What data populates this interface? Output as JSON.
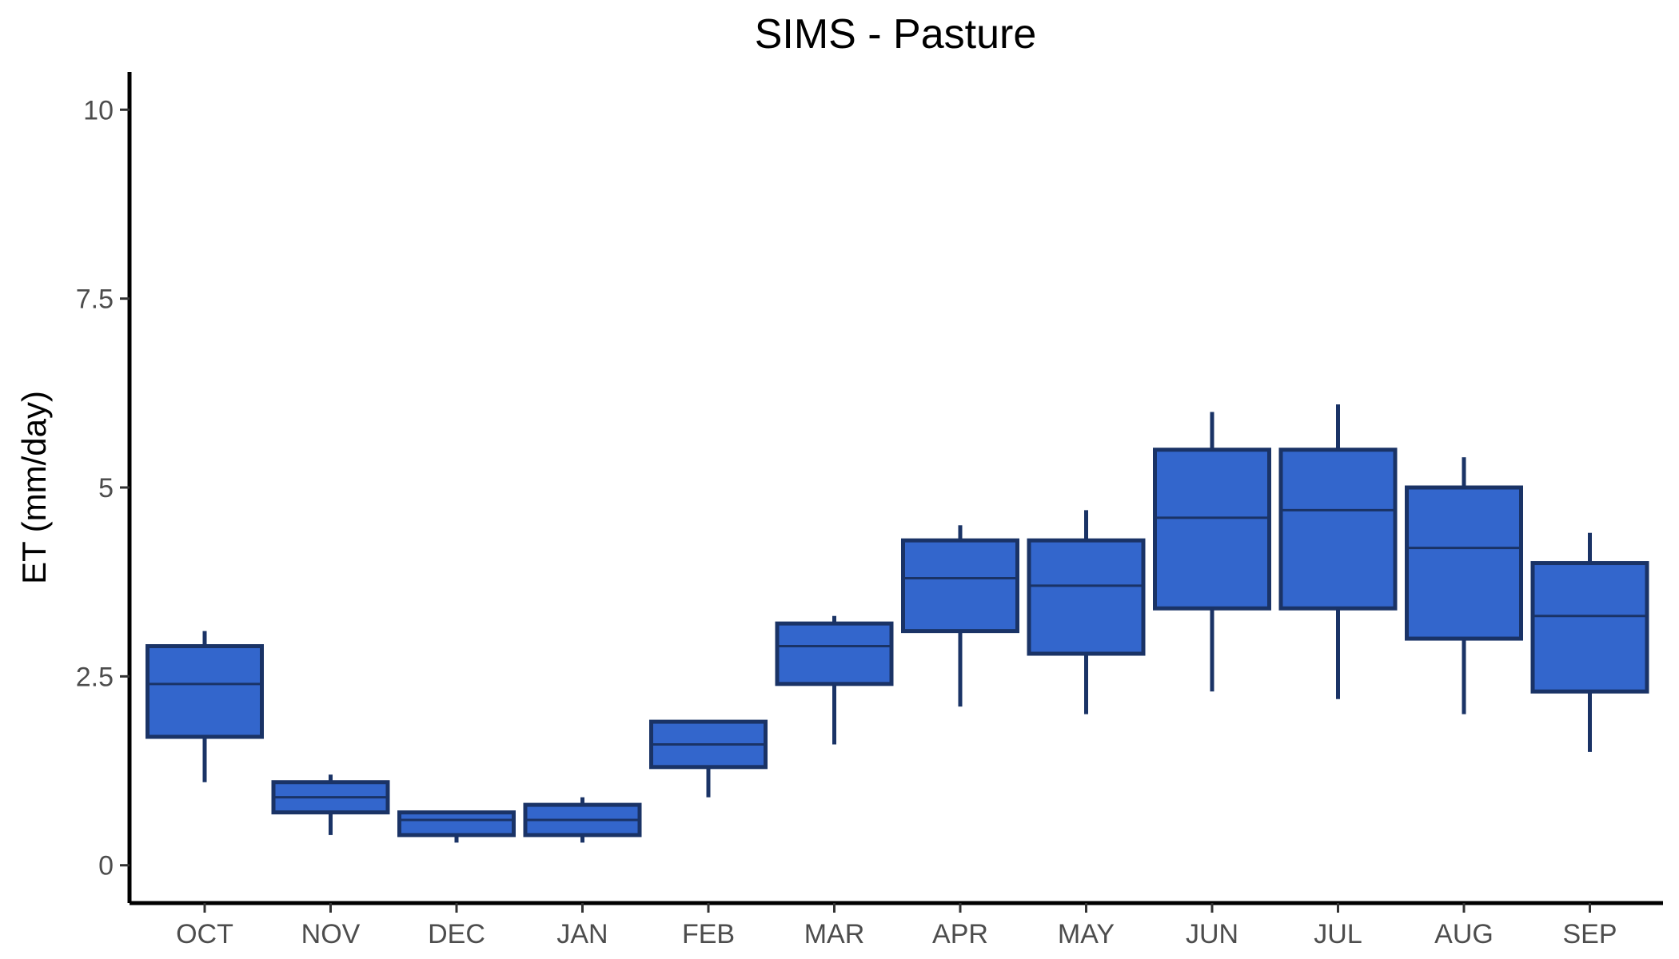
{
  "chart_data": {
    "type": "boxplot",
    "title": "SIMS - Pasture",
    "xlabel": "",
    "ylabel": "ET (mm/day)",
    "ylim": [
      -0.5,
      10.5
    ],
    "y_ticks": [
      0,
      2.5,
      5,
      7.5,
      10
    ],
    "y_tick_labels": [
      "0",
      "2.5",
      "5",
      "7.5",
      "10"
    ],
    "grid": false,
    "colors": {
      "fill": "#3366cc",
      "stroke": "#1a3366",
      "axis": "#000000"
    },
    "categories": [
      "OCT",
      "NOV",
      "DEC",
      "JAN",
      "FEB",
      "MAR",
      "APR",
      "MAY",
      "JUN",
      "JUL",
      "AUG",
      "SEP"
    ],
    "boxes": [
      {
        "min": 1.1,
        "q1": 1.7,
        "median": 2.4,
        "q3": 2.9,
        "max": 3.1
      },
      {
        "min": 0.4,
        "q1": 0.7,
        "median": 0.9,
        "q3": 1.1,
        "max": 1.2
      },
      {
        "min": 0.3,
        "q1": 0.4,
        "median": 0.6,
        "q3": 0.7,
        "max": 0.7
      },
      {
        "min": 0.3,
        "q1": 0.4,
        "median": 0.6,
        "q3": 0.8,
        "max": 0.9
      },
      {
        "min": 0.9,
        "q1": 1.3,
        "median": 1.6,
        "q3": 1.9,
        "max": 1.9
      },
      {
        "min": 1.6,
        "q1": 2.4,
        "median": 2.9,
        "q3": 3.2,
        "max": 3.3
      },
      {
        "min": 2.1,
        "q1": 3.1,
        "median": 3.8,
        "q3": 4.3,
        "max": 4.5
      },
      {
        "min": 2.0,
        "q1": 2.8,
        "median": 3.7,
        "q3": 4.3,
        "max": 4.7
      },
      {
        "min": 2.3,
        "q1": 3.4,
        "median": 4.6,
        "q3": 5.5,
        "max": 6.0
      },
      {
        "min": 2.2,
        "q1": 3.4,
        "median": 4.7,
        "q3": 5.5,
        "max": 6.1
      },
      {
        "min": 2.0,
        "q1": 3.0,
        "median": 4.2,
        "q3": 5.0,
        "max": 5.4
      },
      {
        "min": 1.5,
        "q1": 2.3,
        "median": 3.3,
        "q3": 4.0,
        "max": 4.4
      }
    ]
  }
}
